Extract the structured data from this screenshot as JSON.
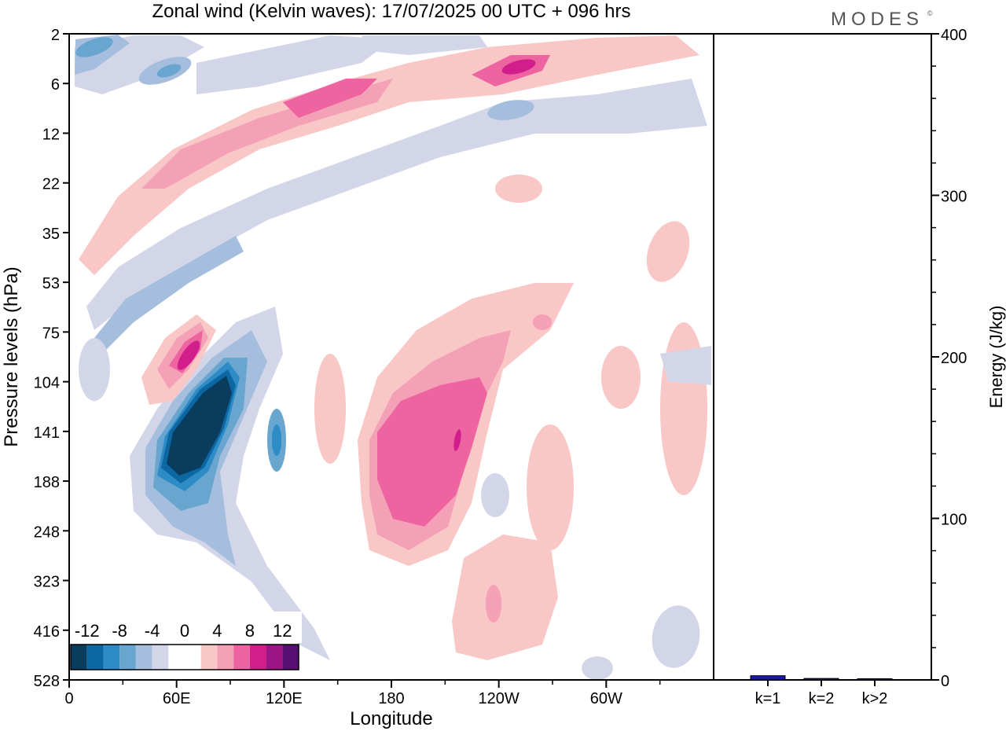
{
  "header": {
    "title": "Zonal wind (Kelvin waves):  17/07/2025  00 UTC  + 096 hrs",
    "brand": "MODES",
    "brand_mark": "©"
  },
  "colors": {
    "scale": [
      "#0a3c5e",
      "#0d67a3",
      "#2d8bc6",
      "#68a6d0",
      "#a6bede",
      "#d3d6e8",
      "#ffffff",
      "#ffffff",
      "#f8c7c6",
      "#f4a1b7",
      "#ee64a1",
      "#d21d8d",
      "#9d1484",
      "#590f71"
    ],
    "bar_fill": "#1a18b0",
    "line": "#000000"
  },
  "chart_data": [
    {
      "type": "heatmap",
      "title": "Zonal wind (Kelvin waves):  17/07/2025  00 UTC  + 096 hrs",
      "xlabel": "Longitude",
      "ylabel": "Pressure levels (hPa)",
      "x_ticks": [
        "0",
        "60E",
        "120E",
        "180",
        "120W",
        "60W"
      ],
      "x_tick_degrees": [
        0,
        60,
        120,
        180,
        240,
        300
      ],
      "xlim": [
        0,
        360
      ],
      "y_levels": [
        "2",
        "6",
        "12",
        "22",
        "35",
        "53",
        "75",
        "104",
        "141",
        "188",
        "248",
        "323",
        "416",
        "528"
      ],
      "colorbar": {
        "ticks": [
          "-12",
          "-8",
          "-4",
          "0",
          "4",
          "8",
          "12"
        ],
        "levels": [
          -14,
          -12,
          -10,
          -8,
          -6,
          -4,
          -2,
          0,
          2,
          4,
          6,
          8,
          10,
          12,
          14
        ]
      },
      "features": [
        {
          "sign": "negative",
          "peak": -14,
          "lon_range": [
            40,
            95
          ],
          "level_range": [
            "104",
            "248"
          ],
          "description_level": "strong"
        },
        {
          "sign": "positive",
          "peak": 10,
          "lon_range": [
            50,
            80
          ],
          "level_range": [
            "75",
            "141"
          ]
        },
        {
          "sign": "positive",
          "peak": 10,
          "lon_range": [
            165,
            235
          ],
          "level_range": [
            "75",
            "323"
          ]
        },
        {
          "sign": "positive",
          "peak": 10,
          "lon_range": [
            20,
            280
          ],
          "level_range": [
            "2",
            "35"
          ]
        },
        {
          "sign": "negative",
          "peak": -8,
          "lon_range": [
            0,
            100
          ],
          "level_range": [
            "2",
            "8"
          ]
        }
      ],
      "grid": false
    },
    {
      "type": "bar",
      "categories": [
        "k=1",
        "k=2",
        "k>2"
      ],
      "values": [
        2.6,
        0.9,
        0.7
      ],
      "ylabel": "Energy (J/kg)",
      "ylim": [
        0,
        400
      ],
      "y_ticks": [
        0,
        100,
        200,
        300,
        400
      ]
    }
  ]
}
